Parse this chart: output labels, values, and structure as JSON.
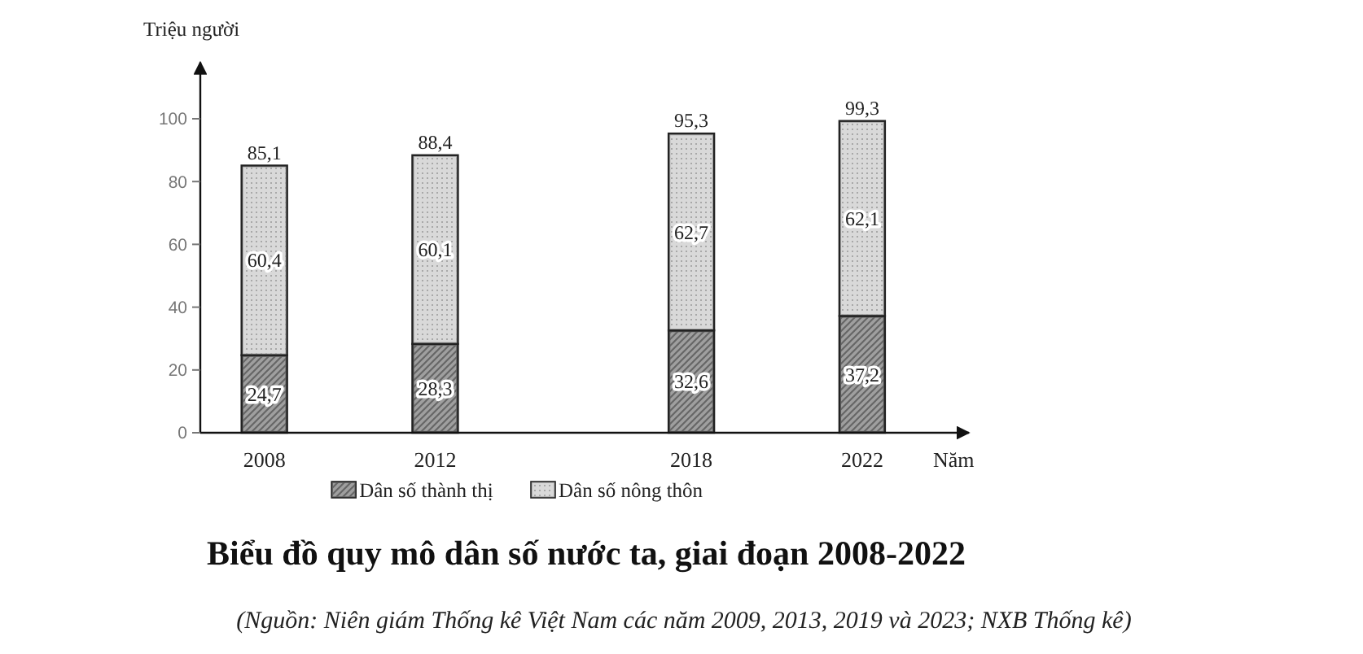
{
  "chart_data": {
    "type": "bar",
    "stacked": true,
    "title": "Biểu đồ quy mô dân số nước ta, giai đoạn 2008-2022",
    "ylabel": "Triệu người",
    "xlabel": "Năm",
    "x": [
      2008,
      2012,
      2018,
      2022
    ],
    "xlim": [
      2006.5,
      2024.5
    ],
    "xticks": [
      2008,
      2012,
      2018,
      2022
    ],
    "ylim": [
      0,
      118
    ],
    "yticks": [
      0,
      20,
      40,
      60,
      80,
      100
    ],
    "series": [
      {
        "name": "Dân số thành thị",
        "color": "#666666",
        "values": [
          24.7,
          28.3,
          32.6,
          37.2
        ],
        "value_labels": [
          "24,7",
          "28,3",
          "32,6",
          "37,2"
        ]
      },
      {
        "name": "Dân số nông thôn",
        "color": "#a8a8a8",
        "values": [
          60.4,
          60.1,
          62.7,
          62.1
        ],
        "value_labels": [
          "60,4",
          "60,1",
          "62,7",
          "62,1"
        ]
      }
    ],
    "totals": [
      "85,1",
      "88,4",
      "95,3",
      "99,3"
    ],
    "legend": "bottom",
    "grid": false,
    "annotations": [
      "(Nguồn: Niên giám Thống kê Việt Nam các năm 2009, 2013, 2019 và 2023; NXB Thống kê)"
    ]
  }
}
